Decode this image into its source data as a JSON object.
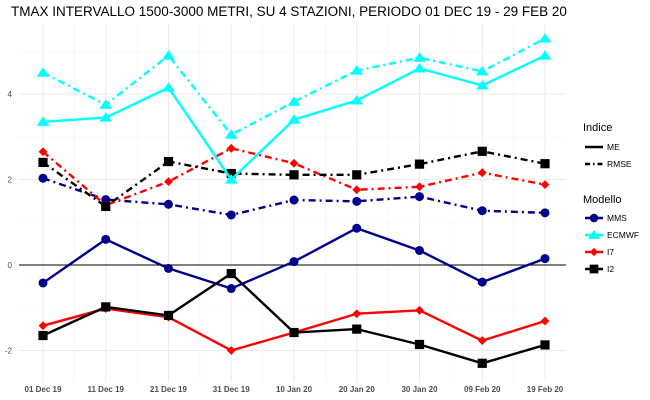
{
  "chart_data": {
    "type": "line",
    "title": "TMAX INTERVALLO 1500-3000 METRI, SU 4 STAZIONI, PERIODO 01 DEC 19  -  29 FEB 20",
    "xlabel": "",
    "ylabel": "",
    "categories": [
      "01 Dec 19",
      "11 Dec 19",
      "21 Dec 19",
      "31 Dec 19",
      "10 Jan 20",
      "20 Jan 20",
      "30 Jan 20",
      "09 Feb 20",
      "19 Feb 20"
    ],
    "ylim": [
      -2.65,
      5.6
    ],
    "yticks": [
      -2,
      0,
      2,
      4
    ],
    "grid": true,
    "reference_line": 0,
    "legend": {
      "position": "right",
      "indice_title": "Indice",
      "indice_items": [
        {
          "label": "ME",
          "dash": "solid"
        },
        {
          "label": "RMSE",
          "dash": "dotdash"
        }
      ],
      "modello_title": "Modello",
      "modello_items": [
        {
          "label": "MMS",
          "color": "#00008B",
          "marker": "circle"
        },
        {
          "label": "ECMWF",
          "color": "#00FFFF",
          "marker": "triangle"
        },
        {
          "label": "I7",
          "color": "#FF0000",
          "marker": "diamond"
        },
        {
          "label": "I2",
          "color": "#000000",
          "marker": "square"
        }
      ]
    },
    "series": [
      {
        "name": "MMS",
        "indice": "ME",
        "color": "#00008B",
        "marker": "circle",
        "values": [
          -0.42,
          0.6,
          -0.08,
          -0.55,
          0.08,
          0.86,
          0.34,
          -0.4,
          0.15
        ]
      },
      {
        "name": "ECMWF",
        "indice": "ME",
        "color": "#00FFFF",
        "marker": "triangle",
        "values": [
          3.35,
          3.45,
          4.15,
          2.0,
          3.4,
          3.85,
          4.6,
          4.2,
          4.9
        ]
      },
      {
        "name": "I7",
        "indice": "ME",
        "color": "#FF0000",
        "marker": "diamond",
        "values": [
          -1.42,
          -1.02,
          -1.22,
          -2.0,
          -1.58,
          -1.14,
          -1.06,
          -1.77,
          -1.31
        ]
      },
      {
        "name": "I2",
        "indice": "ME",
        "color": "#000000",
        "marker": "square",
        "values": [
          -1.65,
          -0.98,
          -1.18,
          -0.2,
          -1.58,
          -1.5,
          -1.86,
          -2.3,
          -1.87
        ]
      },
      {
        "name": "MMS",
        "indice": "RMSE",
        "color": "#00008B",
        "marker": "circle",
        "values": [
          2.03,
          1.53,
          1.42,
          1.17,
          1.52,
          1.49,
          1.6,
          1.27,
          1.22
        ]
      },
      {
        "name": "ECMWF",
        "indice": "RMSE",
        "color": "#00FFFF",
        "marker": "triangle",
        "values": [
          4.5,
          3.75,
          4.9,
          3.05,
          3.82,
          4.55,
          4.85,
          4.53,
          5.3
        ]
      },
      {
        "name": "I7",
        "indice": "RMSE",
        "color": "#FF0000",
        "marker": "diamond",
        "values": [
          2.65,
          1.4,
          1.95,
          2.73,
          2.38,
          1.76,
          1.83,
          2.16,
          1.88
        ]
      },
      {
        "name": "I2",
        "indice": "RMSE",
        "color": "#000000",
        "marker": "square",
        "values": [
          2.4,
          1.37,
          2.42,
          2.14,
          2.11,
          2.11,
          2.36,
          2.66,
          2.37
        ]
      }
    ]
  }
}
